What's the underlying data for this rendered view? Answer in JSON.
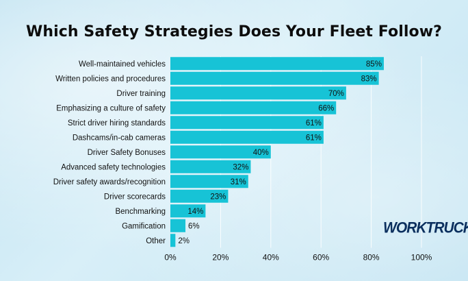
{
  "chart_data": {
    "type": "bar",
    "orientation": "horizontal",
    "title": "Which Safety Strategies Does Your Fleet Follow?",
    "categories": [
      "Well-maintained vehicles",
      "Written policies and procedures",
      "Driver training",
      "Emphasizing a culture of safety",
      "Strict driver hiring standards",
      "Dashcams/in-cab cameras",
      "Driver Safety Bonuses",
      "Advanced safety technologies",
      "Driver safety awards/recognition",
      "Driver scorecards",
      "Benchmarking",
      "Gamification",
      "Other"
    ],
    "values": [
      85,
      83,
      70,
      66,
      61,
      61,
      40,
      32,
      31,
      23,
      14,
      6,
      2
    ],
    "value_labels": [
      "85%",
      "83%",
      "70%",
      "66%",
      "61%",
      "61%",
      "40%",
      "32%",
      "31%",
      "23%",
      "14%",
      "6%",
      "2%"
    ],
    "xlim": [
      0,
      100
    ],
    "xticks": [
      "0%",
      "20%",
      "40%",
      "60%",
      "80%",
      "100%"
    ],
    "xlabel": "",
    "ylabel": "",
    "grid": "vertical",
    "bar_color": "#17c3d6",
    "grid_color": "#ffffff",
    "text_color": "#111111"
  },
  "brand": {
    "logo_text": "WORKTRUCK",
    "logo_color": "#0b2f5e"
  }
}
